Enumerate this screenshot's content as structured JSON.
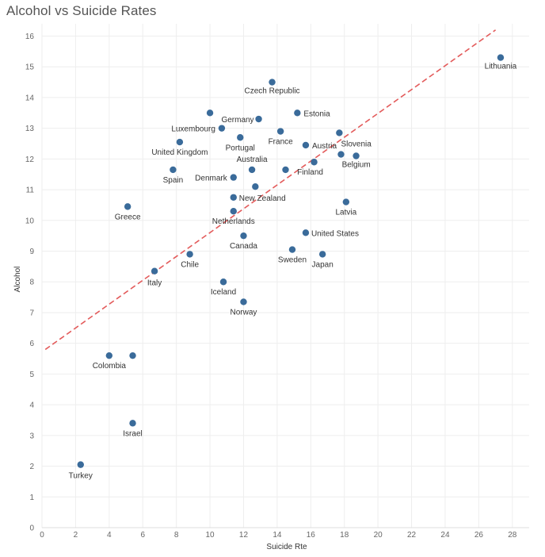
{
  "chart_data": {
    "type": "scatter",
    "title": "Alcohol vs Suicide Rates",
    "xlabel": "Suicide Rte",
    "ylabel": "Alcohol",
    "xlim": [
      0,
      29
    ],
    "ylim": [
      0,
      16.4
    ],
    "xticks": [
      0,
      2,
      4,
      6,
      8,
      10,
      12,
      14,
      16,
      18,
      20,
      22,
      24,
      26,
      28
    ],
    "yticks": [
      0,
      1,
      2,
      3,
      4,
      5,
      6,
      7,
      8,
      9,
      10,
      11,
      12,
      13,
      14,
      15,
      16
    ],
    "grid": true,
    "marker_color": "#3a6b9a",
    "trend_line": {
      "style": "dashed",
      "color": "#e35b5b",
      "x": [
        0.2,
        27.0
      ],
      "y": [
        5.8,
        16.2
      ]
    },
    "points": [
      {
        "label": "Lithuania",
        "x": 27.3,
        "y": 15.3
      },
      {
        "label": "Czech Republic",
        "x": 13.7,
        "y": 14.5
      },
      {
        "label": "Estonia",
        "x": 15.2,
        "y": 13.5
      },
      {
        "label": "",
        "x": 10.0,
        "y": 13.5
      },
      {
        "label": "Germany",
        "x": 12.9,
        "y": 13.3
      },
      {
        "label": "Luxembourg",
        "x": 10.7,
        "y": 13.0
      },
      {
        "label": "France",
        "x": 14.2,
        "y": 12.9
      },
      {
        "label": "",
        "x": 17.7,
        "y": 12.85
      },
      {
        "label": "Portugal",
        "x": 11.8,
        "y": 12.7
      },
      {
        "label": "United Kingdom",
        "x": 8.2,
        "y": 12.55
      },
      {
        "label": "Austria",
        "x": 15.7,
        "y": 12.45
      },
      {
        "label": "Slovenia",
        "x": 17.8,
        "y": 12.15
      },
      {
        "label": "Belgium",
        "x": 18.7,
        "y": 12.1
      },
      {
        "label": "Finland",
        "x": 16.2,
        "y": 11.9
      },
      {
        "label": "Australia",
        "x": 12.5,
        "y": 11.65
      },
      {
        "label": "",
        "x": 14.5,
        "y": 11.65
      },
      {
        "label": "Spain",
        "x": 7.8,
        "y": 11.65
      },
      {
        "label": "Denmark",
        "x": 11.4,
        "y": 11.4
      },
      {
        "label": "",
        "x": 12.7,
        "y": 11.1
      },
      {
        "label": "New Zealand",
        "x": 11.4,
        "y": 10.75
      },
      {
        "label": "Latvia",
        "x": 18.1,
        "y": 10.6
      },
      {
        "label": "Greece",
        "x": 5.1,
        "y": 10.45
      },
      {
        "label": "Netherlands",
        "x": 11.4,
        "y": 10.3
      },
      {
        "label": "United States",
        "x": 15.7,
        "y": 9.6
      },
      {
        "label": "Canada",
        "x": 12.0,
        "y": 9.5
      },
      {
        "label": "Sweden",
        "x": 14.9,
        "y": 9.05
      },
      {
        "label": "Chile",
        "x": 8.8,
        "y": 8.9
      },
      {
        "label": "Japan",
        "x": 16.7,
        "y": 8.9
      },
      {
        "label": "Italy",
        "x": 6.7,
        "y": 8.35
      },
      {
        "label": "Iceland",
        "x": 10.8,
        "y": 8.0
      },
      {
        "label": "Norway",
        "x": 12.0,
        "y": 7.35
      },
      {
        "label": "Colombia",
        "x": 4.0,
        "y": 5.6
      },
      {
        "label": "",
        "x": 5.4,
        "y": 5.6
      },
      {
        "label": "Israel",
        "x": 5.4,
        "y": 3.4
      },
      {
        "label": "Turkey",
        "x": 2.3,
        "y": 2.05
      }
    ]
  }
}
